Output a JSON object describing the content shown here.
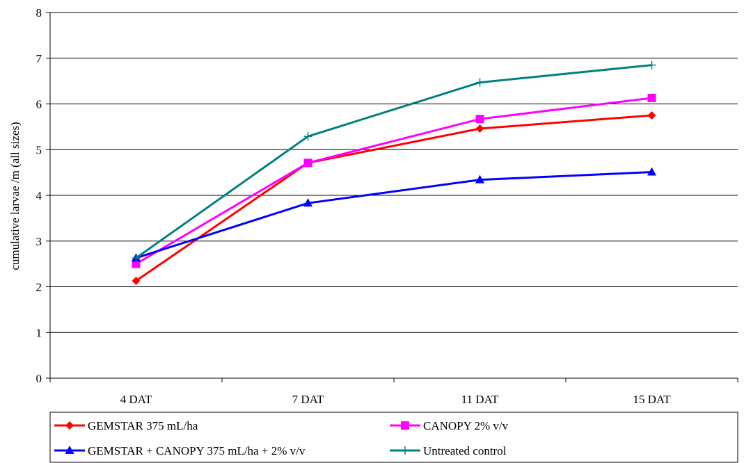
{
  "chart_data": {
    "type": "line",
    "title": "",
    "xlabel": "",
    "ylabel": "cumulative larvae /m (all sizes)",
    "categories": [
      "4 DAT",
      "7 DAT",
      "11 DAT",
      "15 DAT"
    ],
    "ylim": [
      0,
      8
    ],
    "yticks": [
      0,
      1,
      2,
      3,
      4,
      5,
      6,
      7,
      8
    ],
    "grid": true,
    "legend_position": "bottom",
    "series": [
      {
        "name": "GEMSTAR 375 mL/ha",
        "values": [
          2.13,
          4.71,
          5.46,
          5.75
        ],
        "color": "#ff0000",
        "marker": "diamond"
      },
      {
        "name": "CANOPY 2% v/v",
        "values": [
          2.5,
          4.71,
          5.67,
          6.13
        ],
        "color": "#ff00ff",
        "marker": "square"
      },
      {
        "name": "GEMSTAR + CANOPY 375 mL/ha + 2% v/v",
        "values": [
          2.63,
          3.83,
          4.34,
          4.51
        ],
        "color": "#0000ff",
        "marker": "triangle"
      },
      {
        "name": "Untreated control",
        "values": [
          2.63,
          5.29,
          6.47,
          6.85
        ],
        "color": "#008080",
        "marker": "plus"
      }
    ]
  }
}
